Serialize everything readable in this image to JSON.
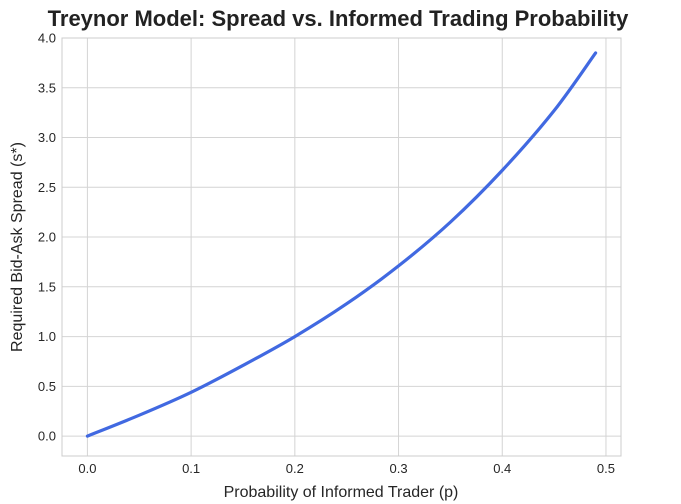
{
  "chart_data": {
    "type": "line",
    "title": "Treynor Model: Spread vs. Informed Trading Probability",
    "xlabel": "Probability of Informed Trader (p)",
    "ylabel": "Required Bid-Ask Spread (s*)",
    "xlim": [
      -0.0245,
      0.5145
    ],
    "ylim": [
      -0.2,
      4.0
    ],
    "x_ticks": [
      "0.0",
      "0.1",
      "0.2",
      "0.3",
      "0.4",
      "0.5"
    ],
    "y_ticks": [
      "0.0",
      "0.5",
      "1.0",
      "1.5",
      "2.0",
      "2.5",
      "3.0",
      "3.5",
      "4.0"
    ],
    "grid": true,
    "series": [
      {
        "color": "#4169e1",
        "x": [
          0.0,
          0.05,
          0.1,
          0.15,
          0.2,
          0.25,
          0.3,
          0.35,
          0.4,
          0.45,
          0.49
        ],
        "y": [
          0.0,
          0.21,
          0.44,
          0.71,
          1.0,
          1.33,
          1.71,
          2.15,
          2.67,
          3.27,
          3.85
        ]
      }
    ]
  }
}
